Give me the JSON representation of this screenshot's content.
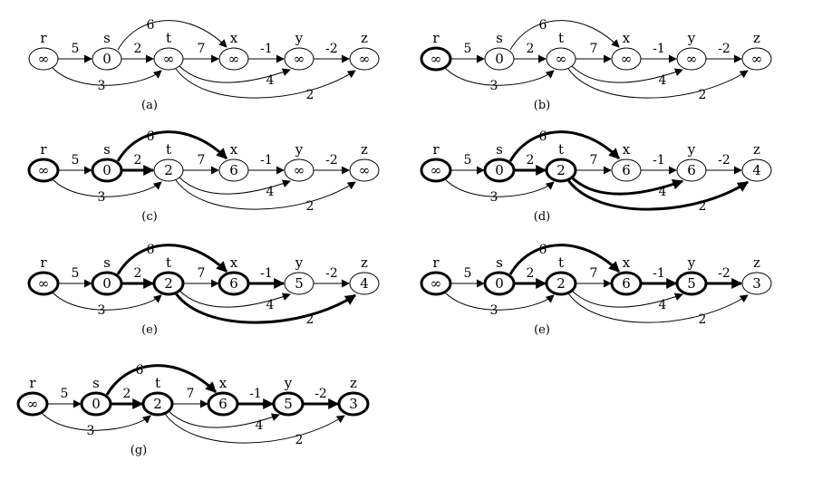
{
  "diagram": {
    "node_names": [
      "r",
      "s",
      "t",
      "x",
      "y",
      "z"
    ],
    "edges": [
      {
        "from": "r",
        "to": "s",
        "weight": "5"
      },
      {
        "from": "r",
        "to": "t",
        "weight": "3"
      },
      {
        "from": "s",
        "to": "t",
        "weight": "2"
      },
      {
        "from": "s",
        "to": "x",
        "weight": "6"
      },
      {
        "from": "t",
        "to": "x",
        "weight": "7"
      },
      {
        "from": "t",
        "to": "y",
        "weight": "4"
      },
      {
        "from": "t",
        "to": "z",
        "weight": "2"
      },
      {
        "from": "x",
        "to": "y",
        "weight": "-1"
      },
      {
        "from": "y",
        "to": "z",
        "weight": "-2"
      }
    ],
    "panels": [
      {
        "caption": "(a)",
        "values": {
          "r": "∞",
          "s": "0",
          "t": "∞",
          "x": "∞",
          "y": "∞",
          "z": "∞"
        },
        "bold_nodes": [],
        "bold_edges": []
      },
      {
        "caption": "(b)",
        "values": {
          "r": "∞",
          "s": "0",
          "t": "∞",
          "x": "∞",
          "y": "∞",
          "z": "∞"
        },
        "bold_nodes": [
          "r"
        ],
        "bold_edges": []
      },
      {
        "caption": "(c)",
        "values": {
          "r": "∞",
          "s": "0",
          "t": "2",
          "x": "6",
          "y": "∞",
          "z": "∞"
        },
        "bold_nodes": [
          "r",
          "s"
        ],
        "bold_edges": [
          "s-t",
          "s-x"
        ]
      },
      {
        "caption": "(d)",
        "values": {
          "r": "∞",
          "s": "0",
          "t": "2",
          "x": "6",
          "y": "6",
          "z": "4"
        },
        "bold_nodes": [
          "r",
          "s",
          "t"
        ],
        "bold_edges": [
          "s-t",
          "s-x",
          "t-y",
          "t-z"
        ]
      },
      {
        "caption": "(e)",
        "values": {
          "r": "∞",
          "s": "0",
          "t": "2",
          "x": "6",
          "y": "5",
          "z": "4"
        },
        "bold_nodes": [
          "r",
          "s",
          "t",
          "x"
        ],
        "bold_edges": [
          "s-t",
          "s-x",
          "x-y",
          "t-z"
        ]
      },
      {
        "caption": "(e)",
        "values": {
          "r": "∞",
          "s": "0",
          "t": "2",
          "x": "6",
          "y": "5",
          "z": "3"
        },
        "bold_nodes": [
          "r",
          "s",
          "t",
          "x",
          "y"
        ],
        "bold_edges": [
          "s-t",
          "s-x",
          "x-y",
          "y-z"
        ]
      },
      {
        "caption": "(g)",
        "values": {
          "r": "∞",
          "s": "0",
          "t": "2",
          "x": "6",
          "y": "5",
          "z": "3"
        },
        "bold_nodes": [
          "r",
          "s",
          "t",
          "x",
          "y",
          "z"
        ],
        "bold_edges": [
          "s-t",
          "s-x",
          "x-y",
          "y-z"
        ]
      }
    ]
  }
}
